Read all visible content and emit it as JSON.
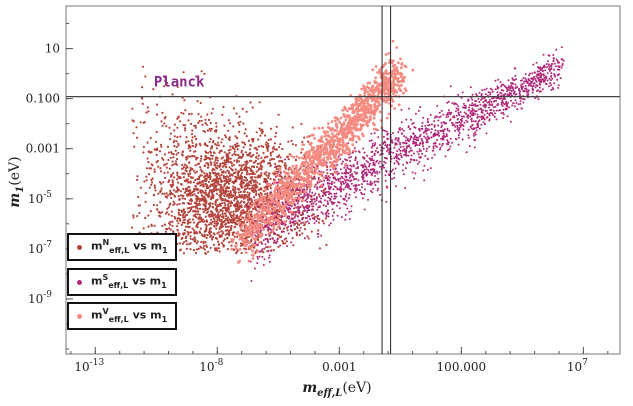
{
  "chart_data": {
    "type": "scatter",
    "xlabel": "m",
    "xlabel_sub": "eff,L",
    "xlabel_unit": "(eV)",
    "ylabel": "m",
    "ylabel_sub": "1",
    "ylabel_unit": "(eV)",
    "x_scale": "log",
    "y_scale": "log",
    "xlim_log10": [
      -14.2,
      8.5
    ],
    "ylim_log10": [
      -11.2,
      2.7
    ],
    "x_ticks": [
      {
        "label": "10",
        "sup": "-13",
        "log10": -13
      },
      {
        "label": "10",
        "sup": "-8",
        "log10": -8
      },
      {
        "label": "0.001",
        "sup": "",
        "log10": -3
      },
      {
        "label": "100.000",
        "sup": "",
        "log10": 2
      },
      {
        "label": "10",
        "sup": "7",
        "log10": 7
      }
    ],
    "y_ticks": [
      {
        "label": "10",
        "sup": "",
        "log10": 1
      },
      {
        "label": "0.100",
        "sup": "",
        "log10": -1
      },
      {
        "label": "0.001",
        "sup": "",
        "log10": -3
      },
      {
        "label": "10",
        "sup": "-5",
        "log10": -5
      },
      {
        "label": "10",
        "sup": "-7",
        "log10": -7
      },
      {
        "label": "10",
        "sup": "-9",
        "log10": -9
      }
    ],
    "reference_lines": {
      "horizontal_log10": [
        -0.92
      ],
      "vertical_log10": [
        -1.25,
        -0.9
      ],
      "horizontal_label": "Planck",
      "horizontal_label_color": "#8a2a8a"
    },
    "series": [
      {
        "name": "m^N_eff,L vs m_1",
        "legend_main": "m",
        "legend_sup": "N",
        "legend_sub": "eff,L",
        "legend_tail": "vs m",
        "legend_tail_sub": "1",
        "color": "#b5443c",
        "region": {
          "center_x_log10": -7.7,
          "center_y_log10": -4.9,
          "spread_x": 1.8,
          "spread_y": 1.3,
          "xmin": -11.5,
          "xmax": -3.2,
          "ymin": -7.2,
          "ymax": 0.3
        }
      },
      {
        "name": "m^S_eff,L vs m_1",
        "legend_main": "m",
        "legend_sup": "S",
        "legend_sub": "eff,L",
        "legend_tail": "vs m",
        "legend_tail_sub": "1",
        "color": "#b0287a",
        "band": {
          "x_log10": [
            -6.5,
            6.0
          ],
          "y_log10_center": [
            -6.2,
            0.2
          ],
          "width": 0.55
        }
      },
      {
        "name": "m^V_eff,L vs m_1",
        "legend_main": "m",
        "legend_sup": "V",
        "legend_sub": "eff,L",
        "legend_tail": "vs m",
        "legend_tail_sub": "1",
        "color": "#f58a80",
        "band": {
          "x_log10": [
            -7.2,
            -0.5
          ],
          "y_log10_center": [
            -6.8,
            0.1
          ],
          "width": 0.45
        }
      }
    ],
    "grid": false,
    "legend_position": "bottom-left"
  }
}
